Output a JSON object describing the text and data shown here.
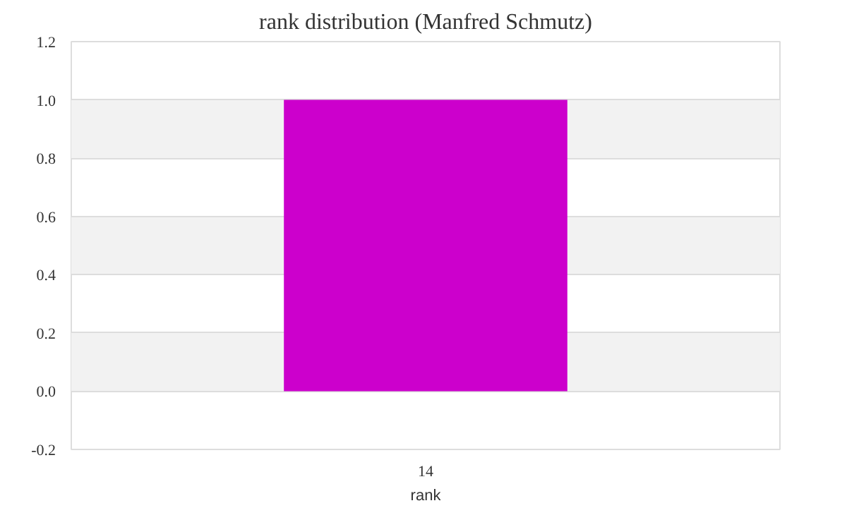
{
  "chart_data": {
    "type": "bar",
    "title": "rank distribution (Manfred Schmutz)",
    "xlabel": "rank",
    "categories": [
      "14"
    ],
    "values": [
      1.0
    ],
    "color": "#cc00cc",
    "ylim": [
      -0.2,
      1.2
    ],
    "yticks": [
      -0.2,
      {
        "value": 0,
        "label": "0.0"
      },
      0.2,
      0.4,
      0.6,
      0.8,
      {
        "value": 1,
        "label": "1.0"
      },
      1.2
    ],
    "grid": "y"
  }
}
